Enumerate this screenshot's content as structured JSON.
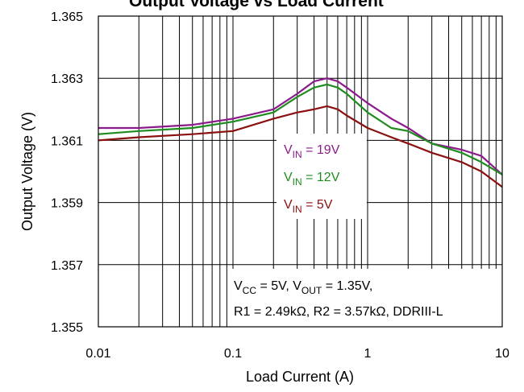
{
  "chart_data": {
    "type": "line",
    "title": "Output Voltage vs Load Current",
    "xlabel": "Load Current (A)",
    "ylabel": "Output Voltage (V)",
    "xscale": "log",
    "xlim": [
      0.01,
      10
    ],
    "ylim": [
      1.355,
      1.365
    ],
    "xticks": [
      0.01,
      0.1,
      1,
      10
    ],
    "xtick_labels": [
      "0.01",
      "0.1",
      "1",
      "10"
    ],
    "yticks": [
      1.355,
      1.357,
      1.359,
      1.361,
      1.363,
      1.365
    ],
    "ytick_labels": [
      "1.355",
      "1.357",
      "1.359",
      "1.361",
      "1.363",
      "1.365"
    ],
    "grid": true,
    "series": [
      {
        "name_main": "V",
        "name_sub": "IN",
        "name_rest": " = 19V",
        "color": "#8B1A8B",
        "x": [
          0.01,
          0.02,
          0.05,
          0.1,
          0.2,
          0.3,
          0.4,
          0.5,
          0.6,
          0.7,
          1,
          1.5,
          2,
          3,
          5,
          7,
          10
        ],
        "y": [
          1.3614,
          1.3614,
          1.3615,
          1.3617,
          1.362,
          1.3625,
          1.3629,
          1.363,
          1.3629,
          1.3627,
          1.3622,
          1.3617,
          1.3614,
          1.3609,
          1.3607,
          1.3605,
          1.3599
        ]
      },
      {
        "name_main": "V",
        "name_sub": "IN",
        "name_rest": " = 12V",
        "color": "#1E8C1E",
        "x": [
          0.01,
          0.02,
          0.05,
          0.1,
          0.2,
          0.3,
          0.4,
          0.5,
          0.6,
          0.7,
          1,
          1.5,
          2,
          3,
          5,
          7,
          10
        ],
        "y": [
          1.3612,
          1.3613,
          1.3614,
          1.3616,
          1.3619,
          1.3624,
          1.3627,
          1.3628,
          1.3627,
          1.3625,
          1.3619,
          1.3614,
          1.3613,
          1.3609,
          1.3606,
          1.3603,
          1.3599
        ]
      },
      {
        "name_main": "V",
        "name_sub": "IN",
        "name_rest": " = 5V",
        "color": "#8B1010",
        "x": [
          0.01,
          0.02,
          0.05,
          0.1,
          0.2,
          0.3,
          0.4,
          0.5,
          0.6,
          0.7,
          1,
          1.5,
          2,
          3,
          5,
          7,
          10
        ],
        "y": [
          1.361,
          1.3611,
          1.3612,
          1.3613,
          1.3617,
          1.3619,
          1.362,
          1.3621,
          1.362,
          1.3618,
          1.3614,
          1.3611,
          1.3609,
          1.3606,
          1.3603,
          1.36,
          1.3595
        ]
      }
    ],
    "annotation": {
      "line1": [
        {
          "t": "V",
          "sub": false
        },
        {
          "t": "CC",
          "sub": true
        },
        {
          "t": " = 5V, V",
          "sub": false
        },
        {
          "t": "OUT",
          "sub": true
        },
        {
          "t": " = 1.35V,",
          "sub": false
        }
      ],
      "line2": "R1 = 2.49kΩ, R2 = 3.57kΩ, DDRIII-L"
    }
  }
}
